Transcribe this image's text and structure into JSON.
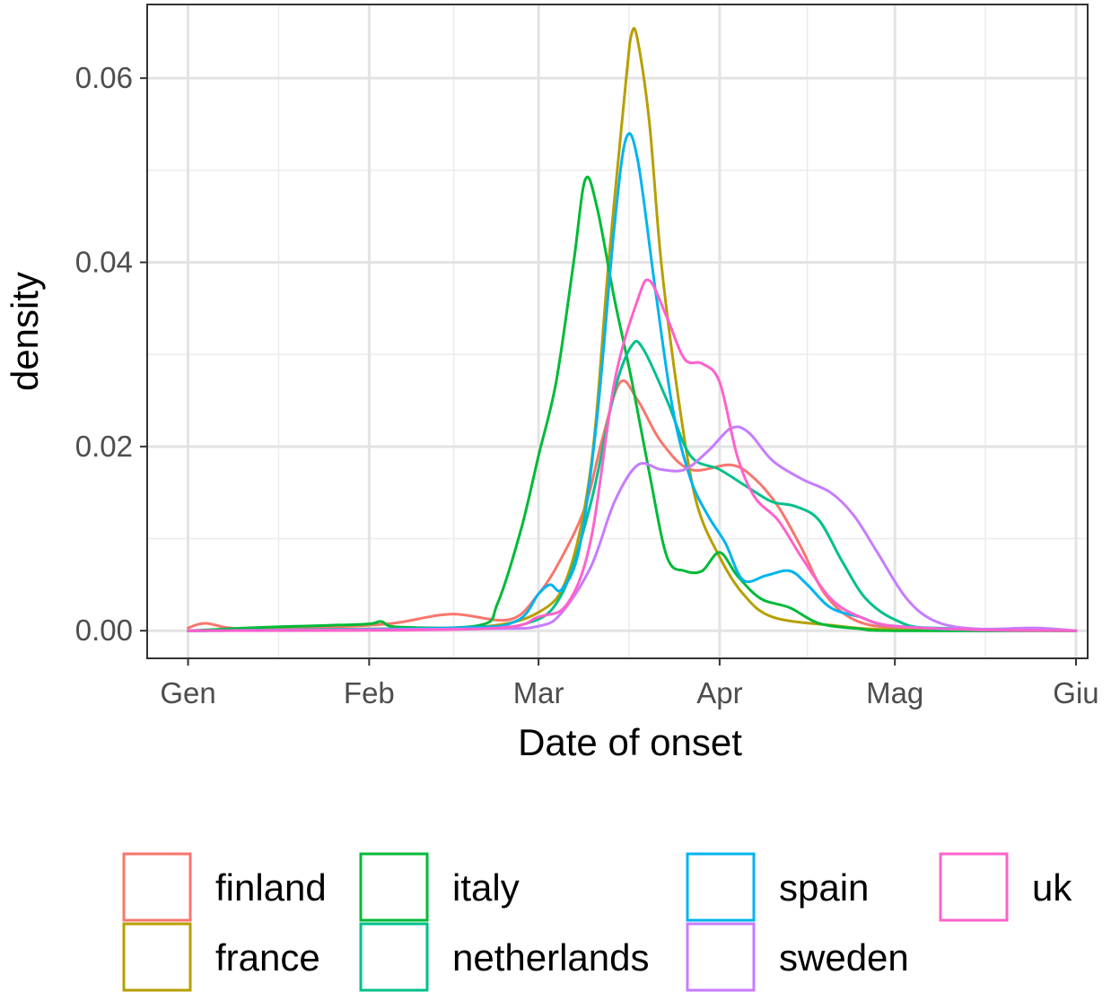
{
  "chart_data": {
    "type": "line",
    "xlabel": "Date of onset",
    "ylabel": "density",
    "x_ticks": [
      {
        "label": "Gen",
        "date": "2020-01-01"
      },
      {
        "label": "Feb",
        "date": "2020-02-01"
      },
      {
        "label": "Mar",
        "date": "2020-03-01"
      },
      {
        "label": "Apr",
        "date": "2020-04-01"
      },
      {
        "label": "Mag",
        "date": "2020-05-01"
      },
      {
        "label": "Giu",
        "date": "2020-06-01"
      }
    ],
    "xlim": [
      "2019-12-25",
      "2020-06-03"
    ],
    "y_ticks": [
      0.0,
      0.02,
      0.04,
      0.06
    ],
    "y_tick_labels": [
      "0.00",
      "0.02",
      "0.04",
      "0.06"
    ],
    "ylim": [
      -0.003,
      0.068
    ],
    "grid": true,
    "legend_position": "bottom",
    "series": [
      {
        "name": "finland",
        "color": "#F8766D",
        "points": [
          [
            "2020-01-01",
            0.0003
          ],
          [
            "2020-01-04",
            0.0008
          ],
          [
            "2020-01-10",
            0.0002
          ],
          [
            "2020-01-25",
            0.0004
          ],
          [
            "2020-02-05",
            0.0008
          ],
          [
            "2020-02-15",
            0.0018
          ],
          [
            "2020-02-25",
            0.0012
          ],
          [
            "2020-03-01",
            0.004
          ],
          [
            "2020-03-05",
            0.008
          ],
          [
            "2020-03-09",
            0.0135
          ],
          [
            "2020-03-12",
            0.021
          ],
          [
            "2020-03-15",
            0.027
          ],
          [
            "2020-03-18",
            0.025
          ],
          [
            "2020-03-22",
            0.0205
          ],
          [
            "2020-03-27",
            0.0175
          ],
          [
            "2020-04-03",
            0.018
          ],
          [
            "2020-04-07",
            0.0165
          ],
          [
            "2020-04-11",
            0.0135
          ],
          [
            "2020-04-15",
            0.009
          ],
          [
            "2020-04-19",
            0.004
          ],
          [
            "2020-04-24",
            0.0012
          ],
          [
            "2020-05-01",
            0.0003
          ],
          [
            "2020-05-15",
            0.0001
          ],
          [
            "2020-06-01",
            0.0
          ]
        ]
      },
      {
        "name": "france",
        "color": "#B79F00",
        "points": [
          [
            "2020-01-01",
            0.0
          ],
          [
            "2020-01-31",
            0.0002
          ],
          [
            "2020-02-20",
            0.0004
          ],
          [
            "2020-03-01",
            0.002
          ],
          [
            "2020-03-06",
            0.006
          ],
          [
            "2020-03-10",
            0.018
          ],
          [
            "2020-03-13",
            0.04
          ],
          [
            "2020-03-16",
            0.06
          ],
          [
            "2020-03-17",
            0.065
          ],
          [
            "2020-03-18",
            0.064
          ],
          [
            "2020-03-20",
            0.055
          ],
          [
            "2020-03-22",
            0.04
          ],
          [
            "2020-03-25",
            0.025
          ],
          [
            "2020-03-28",
            0.014
          ],
          [
            "2020-04-01",
            0.008
          ],
          [
            "2020-04-05",
            0.004
          ],
          [
            "2020-04-10",
            0.0015
          ],
          [
            "2020-04-20",
            0.0006
          ],
          [
            "2020-05-01",
            0.0001
          ],
          [
            "2020-06-01",
            0.0
          ]
        ]
      },
      {
        "name": "italy",
        "color": "#00BA38",
        "points": [
          [
            "2020-01-01",
            0.0
          ],
          [
            "2020-01-15",
            0.0004
          ],
          [
            "2020-01-31",
            0.0007
          ],
          [
            "2020-02-03",
            0.001
          ],
          [
            "2020-02-06",
            0.0004
          ],
          [
            "2020-02-20",
            0.0006
          ],
          [
            "2020-02-23",
            0.003
          ],
          [
            "2020-02-27",
            0.011
          ],
          [
            "2020-03-01",
            0.019
          ],
          [
            "2020-03-04",
            0.027
          ],
          [
            "2020-03-07",
            0.04
          ],
          [
            "2020-03-09",
            0.049
          ],
          [
            "2020-03-11",
            0.046
          ],
          [
            "2020-03-14",
            0.036
          ],
          [
            "2020-03-17",
            0.027
          ],
          [
            "2020-03-20",
            0.017
          ],
          [
            "2020-03-23",
            0.008
          ],
          [
            "2020-03-26",
            0.0065
          ],
          [
            "2020-03-29",
            0.0065
          ],
          [
            "2020-04-01",
            0.0085
          ],
          [
            "2020-04-04",
            0.006
          ],
          [
            "2020-04-08",
            0.0035
          ],
          [
            "2020-04-13",
            0.0025
          ],
          [
            "2020-04-18",
            0.0008
          ],
          [
            "2020-04-25",
            0.0002
          ],
          [
            "2020-05-01",
            0.0
          ],
          [
            "2020-06-01",
            0.0
          ]
        ]
      },
      {
        "name": "netherlands",
        "color": "#00C08B",
        "points": [
          [
            "2020-01-01",
            0.0
          ],
          [
            "2020-02-15",
            0.0002
          ],
          [
            "2020-02-28",
            0.0008
          ],
          [
            "2020-03-05",
            0.004
          ],
          [
            "2020-03-10",
            0.014
          ],
          [
            "2020-03-14",
            0.026
          ],
          [
            "2020-03-17",
            0.031
          ],
          [
            "2020-03-19",
            0.0305
          ],
          [
            "2020-03-23",
            0.025
          ],
          [
            "2020-03-27",
            0.019
          ],
          [
            "2020-04-01",
            0.0175
          ],
          [
            "2020-04-06",
            0.0155
          ],
          [
            "2020-04-10",
            0.014
          ],
          [
            "2020-04-14",
            0.0135
          ],
          [
            "2020-04-18",
            0.012
          ],
          [
            "2020-04-22",
            0.0075
          ],
          [
            "2020-04-26",
            0.0035
          ],
          [
            "2020-05-01",
            0.0012
          ],
          [
            "2020-05-08",
            0.0002
          ],
          [
            "2020-06-01",
            0.0
          ]
        ]
      },
      {
        "name": "spain",
        "color": "#00B4EF",
        "points": [
          [
            "2020-01-01",
            0.0
          ],
          [
            "2020-02-15",
            0.0003
          ],
          [
            "2020-02-26",
            0.001
          ],
          [
            "2020-03-01",
            0.004
          ],
          [
            "2020-03-03",
            0.005
          ],
          [
            "2020-03-05",
            0.0045
          ],
          [
            "2020-03-08",
            0.009
          ],
          [
            "2020-03-11",
            0.023
          ],
          [
            "2020-03-14",
            0.044
          ],
          [
            "2020-03-16",
            0.0535
          ],
          [
            "2020-03-18",
            0.051
          ],
          [
            "2020-03-21",
            0.037
          ],
          [
            "2020-03-24",
            0.024
          ],
          [
            "2020-03-27",
            0.0165
          ],
          [
            "2020-03-30",
            0.0125
          ],
          [
            "2020-04-02",
            0.0095
          ],
          [
            "2020-04-05",
            0.0055
          ],
          [
            "2020-04-09",
            0.006
          ],
          [
            "2020-04-13",
            0.0065
          ],
          [
            "2020-04-16",
            0.005
          ],
          [
            "2020-04-20",
            0.0025
          ],
          [
            "2020-04-25",
            0.0015
          ],
          [
            "2020-05-01",
            0.0005
          ],
          [
            "2020-05-20",
            0.0001
          ],
          [
            "2020-06-01",
            0.0
          ]
        ]
      },
      {
        "name": "sweden",
        "color": "#C77CFF",
        "points": [
          [
            "2020-01-01",
            0.0
          ],
          [
            "2020-02-20",
            0.0002
          ],
          [
            "2020-03-01",
            0.0005
          ],
          [
            "2020-03-05",
            0.002
          ],
          [
            "2020-03-10",
            0.007
          ],
          [
            "2020-03-14",
            0.014
          ],
          [
            "2020-03-18",
            0.018
          ],
          [
            "2020-03-22",
            0.0175
          ],
          [
            "2020-03-26",
            0.0175
          ],
          [
            "2020-03-30",
            0.0195
          ],
          [
            "2020-04-03",
            0.022
          ],
          [
            "2020-04-06",
            0.0215
          ],
          [
            "2020-04-10",
            0.0185
          ],
          [
            "2020-04-15",
            0.0165
          ],
          [
            "2020-04-20",
            0.015
          ],
          [
            "2020-04-24",
            0.0125
          ],
          [
            "2020-04-28",
            0.0085
          ],
          [
            "2020-05-03",
            0.0035
          ],
          [
            "2020-05-08",
            0.001
          ],
          [
            "2020-05-15",
            0.0002
          ],
          [
            "2020-05-25",
            0.0003
          ],
          [
            "2020-06-01",
            0.0
          ]
        ]
      },
      {
        "name": "uk",
        "color": "#FF61CC",
        "points": [
          [
            "2020-01-01",
            0.0
          ],
          [
            "2020-02-20",
            0.0002
          ],
          [
            "2020-03-01",
            0.0015
          ],
          [
            "2020-03-06",
            0.003
          ],
          [
            "2020-03-10",
            0.01
          ],
          [
            "2020-03-14",
            0.027
          ],
          [
            "2020-03-18",
            0.036
          ],
          [
            "2020-03-20",
            0.038
          ],
          [
            "2020-03-23",
            0.034
          ],
          [
            "2020-03-26",
            0.0295
          ],
          [
            "2020-03-29",
            0.029
          ],
          [
            "2020-04-01",
            0.027
          ],
          [
            "2020-04-04",
            0.019
          ],
          [
            "2020-04-07",
            0.0145
          ],
          [
            "2020-04-11",
            0.012
          ],
          [
            "2020-04-15",
            0.008
          ],
          [
            "2020-04-20",
            0.0035
          ],
          [
            "2020-04-25",
            0.0015
          ],
          [
            "2020-05-01",
            0.0005
          ],
          [
            "2020-05-15",
            0.0001
          ],
          [
            "2020-06-01",
            0.0
          ]
        ]
      }
    ]
  }
}
